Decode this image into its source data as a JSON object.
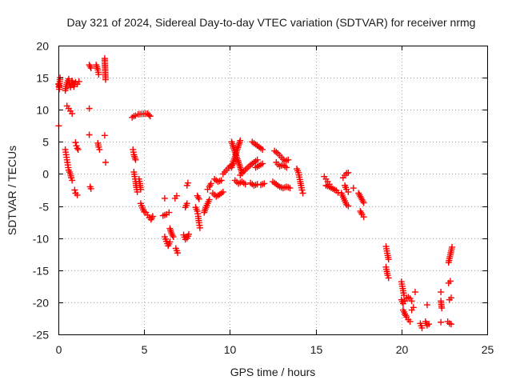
{
  "chart_data": {
    "type": "scatter",
    "title": "Day 321 of 2024, Sidereal Day-to-day VTEC variation (SDTVAR) for receiver nrmg",
    "xlabel": "GPS time / hours",
    "ylabel": "SDTVAR / TECUs",
    "xlim": [
      0,
      25
    ],
    "ylim": [
      -25,
      20
    ],
    "xticks": [
      0,
      5,
      10,
      15,
      20,
      25
    ],
    "yticks": [
      -25,
      -20,
      -15,
      -10,
      -5,
      0,
      5,
      10,
      15,
      20
    ],
    "grid": true,
    "marker": "+",
    "color": "#ff0000",
    "series": [
      {
        "name": "SDTVAR",
        "segments": [
          [
            [
              0.0,
              14.0
            ],
            [
              0.05,
              13.2
            ],
            [
              0.1,
              15.0
            ]
          ],
          [
            [
              0.02,
              7.5
            ]
          ],
          [
            [
              0.4,
              13.0
            ],
            [
              0.5,
              14.2
            ],
            [
              0.6,
              14.8
            ],
            [
              0.7,
              13.5
            ],
            [
              0.8,
              14.5
            ],
            [
              0.9,
              13.6
            ],
            [
              1.0,
              14.3
            ],
            [
              1.1,
              14.0
            ],
            [
              1.2,
              14.4
            ]
          ],
          [
            [
              0.4,
              3.8
            ],
            [
              0.45,
              3.0
            ],
            [
              0.5,
              2.2
            ],
            [
              0.55,
              1.4
            ],
            [
              0.6,
              0.6
            ],
            [
              0.7,
              0.0
            ],
            [
              0.75,
              -0.6
            ],
            [
              0.8,
              -1.0
            ]
          ],
          [
            [
              0.5,
              10.6
            ],
            [
              0.6,
              10.2
            ],
            [
              0.7,
              9.8
            ],
            [
              0.8,
              9.4
            ]
          ],
          [
            [
              0.95,
              -2.5
            ],
            [
              1.0,
              -3.0
            ],
            [
              1.1,
              -3.3
            ]
          ],
          [
            [
              1.0,
              4.9
            ],
            [
              1.05,
              4.4
            ],
            [
              1.1,
              4.0
            ],
            [
              1.15,
              3.8
            ]
          ],
          [
            [
              1.8,
              17.0
            ],
            [
              1.9,
              16.5
            ]
          ],
          [
            [
              1.8,
              10.2
            ]
          ],
          [
            [
              1.8,
              6.1
            ]
          ],
          [
            [
              1.85,
              -2.0
            ],
            [
              1.9,
              -2.3
            ]
          ],
          [
            [
              2.2,
              17.0
            ],
            [
              2.3,
              16.2
            ],
            [
              2.35,
              15.5
            ]
          ],
          [
            [
              2.3,
              4.8
            ],
            [
              2.35,
              4.2
            ],
            [
              2.4,
              3.8
            ]
          ],
          [
            [
              2.7,
              18.0
            ],
            [
              2.75,
              14.7
            ]
          ],
          [
            [
              2.7,
              6.0
            ]
          ],
          [
            [
              2.75,
              1.8
            ]
          ],
          [
            [
              4.3,
              8.8
            ],
            [
              4.4,
              9.0
            ],
            [
              4.5,
              9.1
            ],
            [
              4.65,
              9.3
            ],
            [
              5.2,
              9.4
            ],
            [
              5.35,
              9.0
            ]
          ],
          [
            [
              4.35,
              3.8
            ],
            [
              4.4,
              3.0
            ],
            [
              4.5,
              2.2
            ]
          ],
          [
            [
              4.4,
              0.3
            ],
            [
              4.45,
              -0.4
            ],
            [
              4.5,
              -1.2
            ],
            [
              4.55,
              -2.1
            ],
            [
              4.6,
              -2.8
            ]
          ],
          [
            [
              4.7,
              -0.8
            ],
            [
              4.75,
              -1.5
            ],
            [
              4.8,
              -2.4
            ]
          ],
          [
            [
              4.8,
              -4.6
            ],
            [
              4.9,
              -5.3
            ],
            [
              5.0,
              -5.9
            ]
          ],
          [
            [
              5.1,
              -6.0
            ],
            [
              5.2,
              -6.4
            ],
            [
              5.3,
              -6.8
            ],
            [
              5.4,
              -7.1
            ],
            [
              5.5,
              -6.6
            ]
          ],
          [
            [
              6.2,
              -3.8
            ]
          ],
          [
            [
              6.1,
              -6.5
            ],
            [
              6.3,
              -6.3
            ],
            [
              6.45,
              -6.0
            ]
          ],
          [
            [
              6.2,
              -9.8
            ],
            [
              6.3,
              -10.5
            ],
            [
              6.4,
              -11.2
            ],
            [
              6.5,
              -10.6
            ]
          ],
          [
            [
              6.5,
              -8.5
            ],
            [
              6.6,
              -9.3
            ],
            [
              6.7,
              -9.8
            ]
          ],
          [
            [
              6.8,
              -3.8
            ],
            [
              6.9,
              -3.4
            ]
          ],
          [
            [
              6.85,
              -11.6
            ],
            [
              6.95,
              -12.3
            ]
          ],
          [
            [
              7.3,
              -9.5
            ],
            [
              7.4,
              -10.2
            ],
            [
              7.5,
              -10.0
            ],
            [
              7.6,
              -9.4
            ]
          ],
          [
            [
              7.4,
              -5.2
            ],
            [
              7.5,
              -4.6
            ]
          ],
          [
            [
              7.5,
              -1.8
            ],
            [
              7.55,
              -1.4
            ]
          ],
          [
            [
              8.0,
              -5.2
            ],
            [
              8.1,
              -5.8
            ],
            [
              8.15,
              -6.6
            ],
            [
              8.2,
              -7.6
            ],
            [
              8.25,
              -8.4
            ]
          ],
          [
            [
              8.1,
              -3.4
            ],
            [
              8.2,
              -3.9
            ]
          ],
          [
            [
              8.5,
              -6.0
            ],
            [
              8.6,
              -5.2
            ],
            [
              8.7,
              -4.6
            ],
            [
              8.8,
              -4.0
            ]
          ],
          [
            [
              8.7,
              -2.4
            ],
            [
              8.8,
              -2.0
            ],
            [
              8.9,
              -1.5
            ]
          ],
          [
            [
              9.0,
              -3.0
            ],
            [
              9.2,
              -3.5
            ],
            [
              9.4,
              -3.2
            ],
            [
              9.6,
              -2.8
            ]
          ],
          [
            [
              9.1,
              -0.8
            ],
            [
              9.3,
              -1.2
            ],
            [
              9.5,
              -1.0
            ]
          ],
          [
            [
              9.6,
              0.0
            ],
            [
              9.8,
              0.6
            ],
            [
              10.0,
              1.2
            ],
            [
              10.2,
              1.6
            ]
          ],
          [
            [
              10.1,
              5.0
            ],
            [
              10.2,
              4.2
            ],
            [
              10.3,
              3.4
            ],
            [
              10.4,
              2.6
            ],
            [
              10.5,
              1.8
            ],
            [
              10.6,
              1.0
            ],
            [
              10.7,
              0.2
            ]
          ],
          [
            [
              10.1,
              1.0
            ],
            [
              10.2,
              1.9
            ],
            [
              10.3,
              2.7
            ],
            [
              10.4,
              3.6
            ],
            [
              10.5,
              4.4
            ],
            [
              10.6,
              5.2
            ]
          ],
          [
            [
              10.3,
              -1.0
            ],
            [
              10.5,
              -1.5
            ],
            [
              10.7,
              -1.2
            ],
            [
              10.9,
              -1.6
            ]
          ],
          [
            [
              10.6,
              -0.2
            ],
            [
              10.8,
              0.4
            ],
            [
              11.0,
              0.9
            ],
            [
              11.2,
              1.4
            ],
            [
              11.4,
              1.8
            ],
            [
              11.6,
              2.2
            ]
          ],
          [
            [
              11.2,
              -1.4
            ],
            [
              11.4,
              -1.8
            ],
            [
              11.6,
              -1.6
            ],
            [
              11.8,
              -1.7
            ],
            [
              12.0,
              -1.5
            ]
          ],
          [
            [
              11.3,
              5.0
            ],
            [
              11.5,
              4.6
            ],
            [
              11.7,
              4.2
            ],
            [
              11.9,
              3.8
            ]
          ],
          [
            [
              11.5,
              1.0
            ],
            [
              11.7,
              1.3
            ],
            [
              11.9,
              1.6
            ]
          ],
          [
            [
              12.6,
              3.6
            ],
            [
              12.8,
              3.2
            ],
            [
              13.0,
              2.6
            ],
            [
              13.2,
              2.0
            ],
            [
              13.4,
              2.2
            ]
          ],
          [
            [
              12.7,
              1.8
            ],
            [
              12.9,
              1.2
            ],
            [
              13.1,
              1.4
            ],
            [
              13.3,
              1.0
            ]
          ],
          [
            [
              12.5,
              -1.2
            ],
            [
              12.7,
              -1.6
            ],
            [
              12.9,
              -2.0
            ],
            [
              13.1,
              -2.2
            ],
            [
              13.3,
              -2.0
            ],
            [
              13.5,
              -2.2
            ]
          ],
          [
            [
              13.9,
              0.8
            ],
            [
              14.0,
              0.2
            ],
            [
              14.05,
              -0.5
            ],
            [
              14.1,
              -1.2
            ],
            [
              14.15,
              -1.8
            ],
            [
              14.2,
              -2.5
            ],
            [
              14.25,
              -3.0
            ]
          ],
          [
            [
              15.5,
              -0.4
            ],
            [
              15.6,
              -0.8
            ],
            [
              15.7,
              -1.2
            ],
            [
              15.8,
              -1.6
            ]
          ],
          [
            [
              15.6,
              -1.8
            ],
            [
              15.8,
              -2.0
            ],
            [
              16.0,
              -2.3
            ],
            [
              16.2,
              -2.6
            ],
            [
              16.3,
              -2.9
            ]
          ],
          [
            [
              16.5,
              -3.0
            ],
            [
              16.6,
              -3.6
            ],
            [
              16.7,
              -4.2
            ],
            [
              16.8,
              -4.8
            ],
            [
              16.9,
              -5.0
            ]
          ],
          [
            [
              16.6,
              -0.6
            ],
            [
              16.7,
              -0.2
            ],
            [
              16.8,
              0.1
            ],
            [
              16.9,
              0.2
            ]
          ],
          [
            [
              16.7,
              -1.8
            ],
            [
              16.8,
              -2.4
            ],
            [
              16.9,
              -2.8
            ]
          ],
          [
            [
              17.2,
              -2.2
            ]
          ],
          [
            [
              17.5,
              -3.0
            ],
            [
              17.6,
              -3.5
            ],
            [
              17.7,
              -4.0
            ],
            [
              17.8,
              -4.5
            ]
          ],
          [
            [
              17.6,
              -5.8
            ],
            [
              17.7,
              -6.3
            ],
            [
              17.8,
              -6.7
            ]
          ],
          [
            [
              19.1,
              -11.3
            ],
            [
              19.15,
              -12.0
            ],
            [
              19.2,
              -12.7
            ],
            [
              19.25,
              -13.3
            ]
          ],
          [
            [
              19.1,
              -14.5
            ],
            [
              19.15,
              -15.2
            ],
            [
              19.2,
              -15.8
            ],
            [
              19.25,
              -16.2
            ]
          ],
          [
            [
              20.0,
              -16.8
            ],
            [
              20.05,
              -17.5
            ],
            [
              20.1,
              -18.2
            ],
            [
              20.15,
              -18.9
            ]
          ],
          [
            [
              20.0,
              -19.6
            ],
            [
              20.1,
              -20.2
            ],
            [
              20.2,
              -19.8
            ],
            [
              20.3,
              -19.4
            ],
            [
              20.4,
              -19.2
            ],
            [
              20.5,
              -19.4
            ],
            [
              20.6,
              -19.8
            ]
          ],
          [
            [
              20.1,
              -21.2
            ],
            [
              20.2,
              -21.8
            ],
            [
              20.3,
              -22.3
            ],
            [
              20.4,
              -22.7
            ],
            [
              20.5,
              -23.0
            ]
          ],
          [
            [
              20.6,
              -21.2
            ],
            [
              20.7,
              -20.8
            ]
          ],
          [
            [
              20.8,
              -18.4
            ]
          ],
          [
            [
              21.1,
              -23.3
            ],
            [
              21.2,
              -24.0
            ]
          ],
          [
            [
              21.4,
              -23.0
            ],
            [
              21.5,
              -23.6
            ],
            [
              21.6,
              -23.4
            ]
          ],
          [
            [
              21.5,
              -20.4
            ]
          ],
          [
            [
              22.3,
              -19.8
            ],
            [
              22.35,
              -20.9
            ]
          ],
          [
            [
              22.3,
              -18.4
            ]
          ],
          [
            [
              22.3,
              -23.1
            ]
          ],
          [
            [
              22.7,
              -23.0
            ],
            [
              22.8,
              -23.3
            ],
            [
              22.9,
              -23.4
            ]
          ],
          [
            [
              22.8,
              -19.6
            ],
            [
              22.9,
              -19.3
            ]
          ],
          [
            [
              22.75,
              -17.0
            ],
            [
              22.85,
              -16.7
            ]
          ],
          [
            [
              22.75,
              -13.8
            ],
            [
              22.8,
              -13.2
            ],
            [
              22.85,
              -12.6
            ],
            [
              22.9,
              -12.0
            ],
            [
              22.95,
              -11.4
            ]
          ]
        ]
      }
    ]
  }
}
